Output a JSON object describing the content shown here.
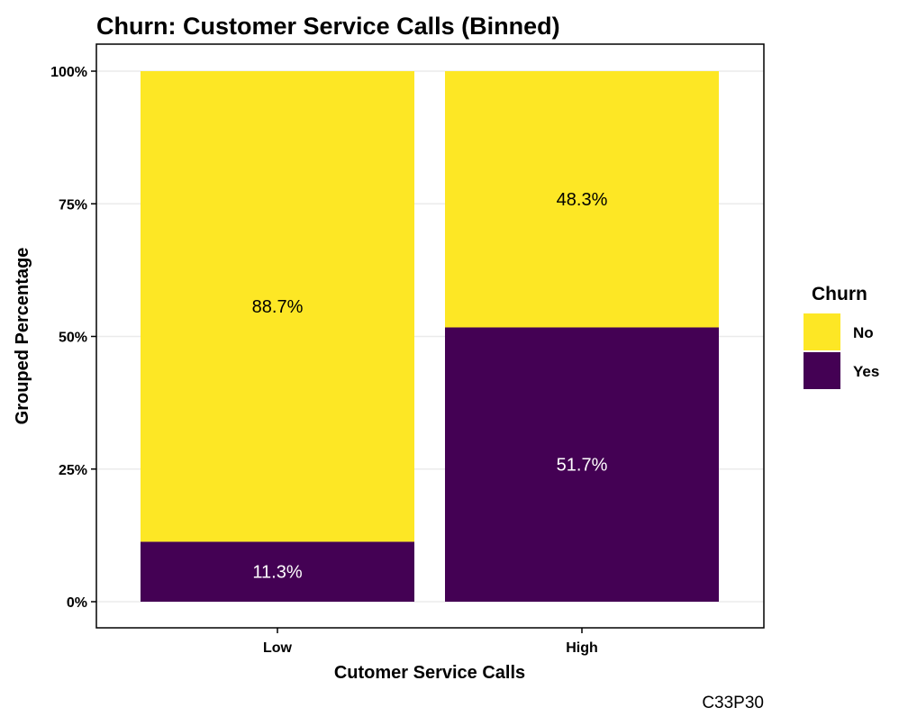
{
  "chart_data": {
    "type": "bar",
    "stacked": true,
    "title": "Churn: Customer Service Calls (Binned)",
    "xlabel": "Cutomer Service Calls",
    "ylabel": "Grouped Percentage",
    "categories": [
      "Low",
      "High"
    ],
    "ylim": [
      0,
      1
    ],
    "y_ticks": [
      0,
      0.25,
      0.5,
      0.75,
      1
    ],
    "y_tick_labels": [
      "0%",
      "25%",
      "50%",
      "75%",
      "100%"
    ],
    "grid": true,
    "series": [
      {
        "name": "Yes",
        "values": [
          0.113,
          0.517
        ],
        "labels": [
          "11.3%",
          "51.7%"
        ],
        "color": "#440154",
        "label_color": "#ffffff"
      },
      {
        "name": "No",
        "values": [
          0.887,
          0.483
        ],
        "labels": [
          "88.7%",
          "48.3%"
        ],
        "color": "#FDE725",
        "label_color": "#000000"
      }
    ],
    "legend": {
      "title": "Churn",
      "position": "right",
      "entries": [
        {
          "label": "No",
          "color": "#FDE725"
        },
        {
          "label": "Yes",
          "color": "#440154"
        }
      ]
    },
    "caption": "C33P30"
  }
}
